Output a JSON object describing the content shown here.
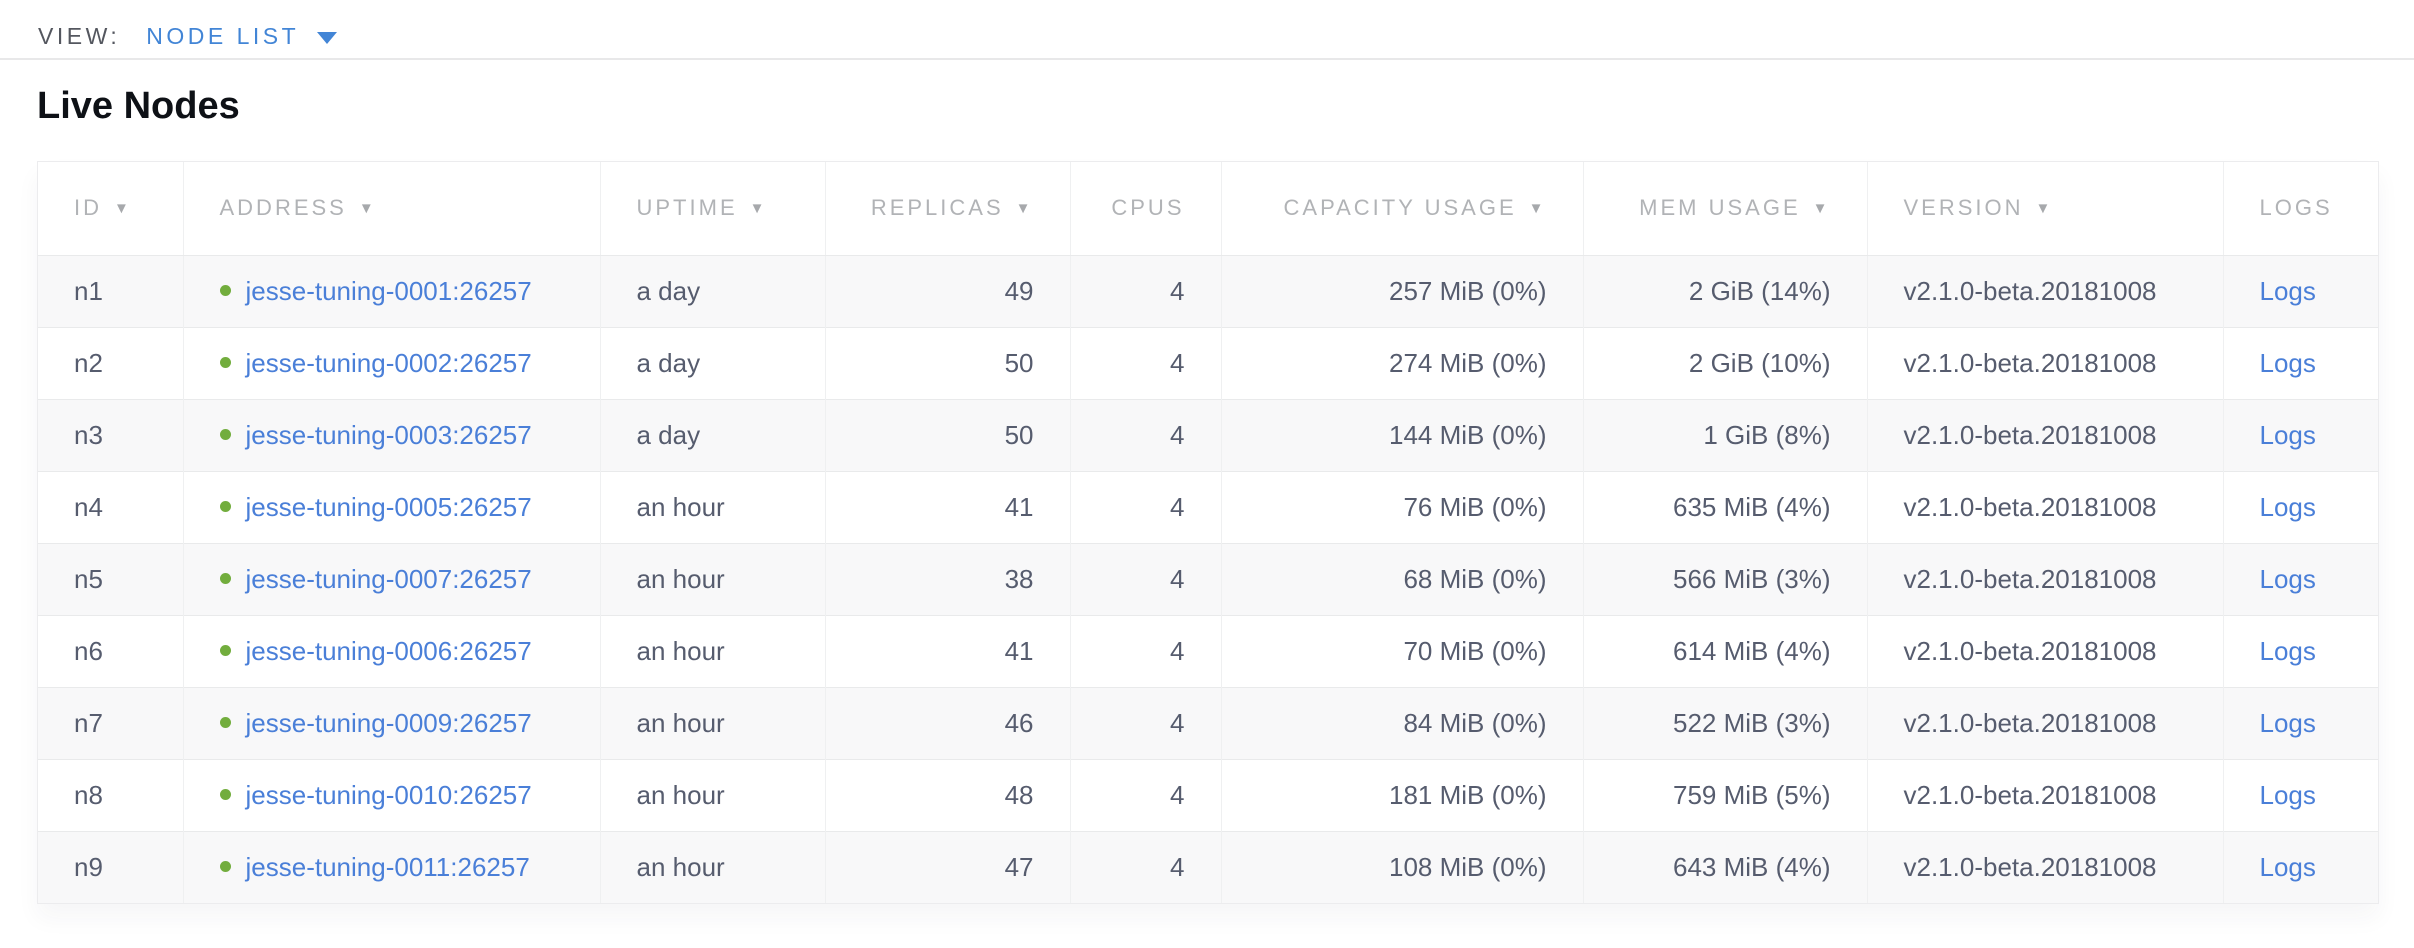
{
  "view_bar": {
    "label": "VIEW:",
    "selected_view": "NODE LIST"
  },
  "page": {
    "title": "Live Nodes"
  },
  "icons": {
    "sort_arrow": "▼",
    "dropdown_caret": "caret-down",
    "live_status": "green-dot"
  },
  "colors": {
    "accent_blue": "#4285d6",
    "link_blue": "#4a7fd8",
    "live_green": "#72ad3d",
    "header_gray": "#b1b3b6",
    "body_text": "#565c6e",
    "alt_row": "#f8f8f9",
    "divider": "#e8e8e9"
  },
  "table": {
    "columns": [
      {
        "key": "id",
        "label": "ID",
        "sortable": true,
        "align": "left"
      },
      {
        "key": "address",
        "label": "ADDRESS",
        "sortable": true,
        "align": "left"
      },
      {
        "key": "uptime",
        "label": "UPTIME",
        "sortable": true,
        "align": "left"
      },
      {
        "key": "replicas",
        "label": "REPLICAS",
        "sortable": true,
        "align": "right"
      },
      {
        "key": "cpus",
        "label": "CPUS",
        "sortable": false,
        "align": "right"
      },
      {
        "key": "capacity",
        "label": "CAPACITY USAGE",
        "sortable": true,
        "align": "right"
      },
      {
        "key": "mem",
        "label": "MEM USAGE",
        "sortable": true,
        "align": "right"
      },
      {
        "key": "version",
        "label": "VERSION",
        "sortable": true,
        "align": "left"
      },
      {
        "key": "logs",
        "label": "LOGS",
        "sortable": false,
        "align": "left"
      }
    ],
    "rows": [
      {
        "id": "n1",
        "address": "jesse-tuning-0001:26257",
        "uptime": "a day",
        "replicas": "49",
        "cpus": "4",
        "capacity": "257 MiB (0%)",
        "mem": "2 GiB (14%)",
        "version": "v2.1.0-beta.20181008",
        "logs": "Logs"
      },
      {
        "id": "n2",
        "address": "jesse-tuning-0002:26257",
        "uptime": "a day",
        "replicas": "50",
        "cpus": "4",
        "capacity": "274 MiB (0%)",
        "mem": "2 GiB (10%)",
        "version": "v2.1.0-beta.20181008",
        "logs": "Logs"
      },
      {
        "id": "n3",
        "address": "jesse-tuning-0003:26257",
        "uptime": "a day",
        "replicas": "50",
        "cpus": "4",
        "capacity": "144 MiB (0%)",
        "mem": "1 GiB (8%)",
        "version": "v2.1.0-beta.20181008",
        "logs": "Logs"
      },
      {
        "id": "n4",
        "address": "jesse-tuning-0005:26257",
        "uptime": "an hour",
        "replicas": "41",
        "cpus": "4",
        "capacity": "76 MiB (0%)",
        "mem": "635 MiB (4%)",
        "version": "v2.1.0-beta.20181008",
        "logs": "Logs"
      },
      {
        "id": "n5",
        "address": "jesse-tuning-0007:26257",
        "uptime": "an hour",
        "replicas": "38",
        "cpus": "4",
        "capacity": "68 MiB (0%)",
        "mem": "566 MiB (3%)",
        "version": "v2.1.0-beta.20181008",
        "logs": "Logs"
      },
      {
        "id": "n6",
        "address": "jesse-tuning-0006:26257",
        "uptime": "an hour",
        "replicas": "41",
        "cpus": "4",
        "capacity": "70 MiB (0%)",
        "mem": "614 MiB (4%)",
        "version": "v2.1.0-beta.20181008",
        "logs": "Logs"
      },
      {
        "id": "n7",
        "address": "jesse-tuning-0009:26257",
        "uptime": "an hour",
        "replicas": "46",
        "cpus": "4",
        "capacity": "84 MiB (0%)",
        "mem": "522 MiB (3%)",
        "version": "v2.1.0-beta.20181008",
        "logs": "Logs"
      },
      {
        "id": "n8",
        "address": "jesse-tuning-0010:26257",
        "uptime": "an hour",
        "replicas": "48",
        "cpus": "4",
        "capacity": "181 MiB (0%)",
        "mem": "759 MiB (5%)",
        "version": "v2.1.0-beta.20181008",
        "logs": "Logs"
      },
      {
        "id": "n9",
        "address": "jesse-tuning-0011:26257",
        "uptime": "an hour",
        "replicas": "47",
        "cpus": "4",
        "capacity": "108 MiB (0%)",
        "mem": "643 MiB (4%)",
        "version": "v2.1.0-beta.20181008",
        "logs": "Logs"
      }
    ]
  }
}
